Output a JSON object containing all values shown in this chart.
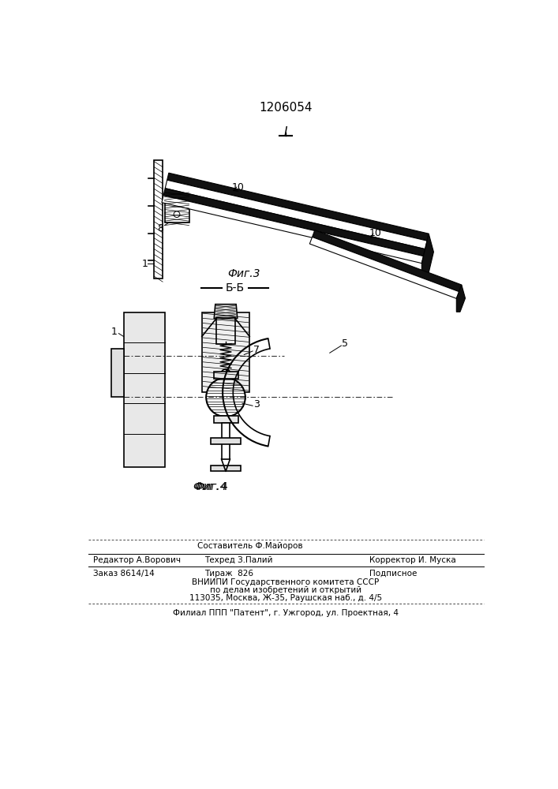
{
  "patent_number": "1206054",
  "bg_color": "#ffffff",
  "footer": {
    "line1_center_top": "Составитель Ф.Майоров",
    "line1_left": "Редактор А.Ворович",
    "line1_center": "Техред З.Палий",
    "line1_right": "Корректор И. Муска",
    "line2_left": "Заказ 8614/14",
    "line2_center": "Тираж  826",
    "line2_right": "Подписное",
    "line3": "ВНИИПИ Государственного комитета СССР",
    "line4": "по делам изобретений и открытий",
    "line5": "113035, Москва, Ж-35, Раушская наб., д. 4/5",
    "line6": "Филиал ППП \"Патент\", г. Ужгород, ул. Проектная, 4"
  }
}
